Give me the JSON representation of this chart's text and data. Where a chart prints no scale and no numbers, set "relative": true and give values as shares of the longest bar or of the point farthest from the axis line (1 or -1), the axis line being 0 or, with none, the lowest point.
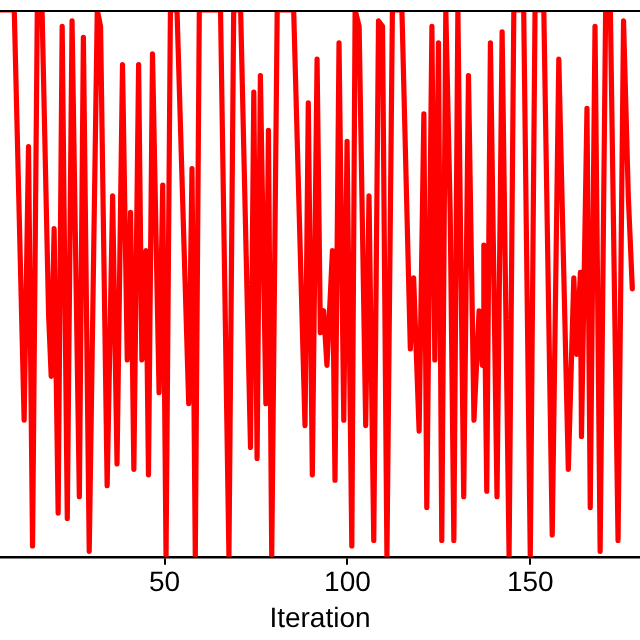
{
  "chart_data": {
    "type": "line",
    "xlabel": "Iteration",
    "relative": true,
    "tick_labels": "x",
    "grid": false,
    "legend": false,
    "marker": "none",
    "line_style": "solid",
    "xlim": [
      5,
      180
    ],
    "xticks": [
      50,
      100,
      150
    ],
    "series": [
      {
        "color": "#ff0000",
        "x": [
          5.2,
          8.9,
          11.6,
          12.8,
          13.9,
          15.2,
          16.5,
          18.3,
          19.0,
          19.8,
          20.9,
          22.0,
          23.4,
          24.7,
          26.7,
          27.8,
          29.4,
          31.6,
          32.5,
          34.3,
          35.8,
          37.0,
          38.5,
          39.8,
          40.7,
          41.6,
          42.9,
          43.8,
          44.9,
          45.6,
          46.7,
          48.5,
          49.5,
          50.4,
          51.6,
          53.4,
          56.6,
          57.5,
          58.4,
          59.5,
          65.3,
          67.6,
          68.9,
          70.8,
          73.5,
          74.4,
          75.3,
          76.2,
          77.7,
          78.4,
          79.3,
          80.8,
          85.3,
          88.4,
          89.3,
          90.4,
          91.7,
          92.6,
          93.5,
          94.4,
          95.9,
          96.6,
          97.7,
          99.0,
          99.9,
          101.2,
          102.1,
          103.2,
          105.0,
          105.9,
          107.2,
          108.5,
          109.6,
          110.8,
          112.3,
          114.9,
          117.2,
          118.1,
          119.6,
          120.9,
          121.7,
          123.1,
          123.9,
          124.9,
          125.8,
          126.9,
          128.1,
          129.1,
          130.2,
          131.8,
          133.1,
          134.6,
          136.0,
          136.9,
          137.3,
          138.1,
          139.1,
          140.9,
          142.3,
          144.2,
          145.5,
          148.2,
          150.0,
          151.3,
          153.7,
          156.0,
          157.8,
          160.4,
          161.9,
          162.7,
          163.7,
          164.0,
          165.5,
          166.4,
          167.7,
          169.1,
          170.6,
          171.9,
          174.0,
          175.5,
          176.8,
          177.9
        ],
        "values": [
          1,
          1,
          0.25,
          0.75,
          0.02,
          1,
          1,
          0.44,
          0.33,
          0.6,
          0.08,
          0.97,
          0.07,
          0.98,
          0.11,
          0.95,
          0.01,
          1,
          0.97,
          0.13,
          0.66,
          0.17,
          0.9,
          0.36,
          0.63,
          0.16,
          0.9,
          0.36,
          0.56,
          0.15,
          0.92,
          0.3,
          0.68,
          0,
          1,
          1,
          0.28,
          0.71,
          0,
          1,
          1,
          0,
          1,
          1,
          0.2,
          0.85,
          0.18,
          0.88,
          0.28,
          0.78,
          0,
          1,
          1,
          0.24,
          0.83,
          0.15,
          0.91,
          0.41,
          0.45,
          0.35,
          0.56,
          0.14,
          0.94,
          0.25,
          0.76,
          0.02,
          1,
          0.97,
          0.24,
          0.66,
          0.03,
          0.98,
          0.97,
          0,
          1,
          1,
          0.38,
          0.51,
          0.23,
          0.81,
          0.09,
          0.97,
          0.36,
          0.94,
          0.03,
          1,
          0.63,
          0.03,
          1,
          0.11,
          0.88,
          0.25,
          0.45,
          0.35,
          0.57,
          0.12,
          0.94,
          0.11,
          0.96,
          0,
          1,
          1,
          0,
          1,
          1,
          0.04,
          0.91,
          0.16,
          0.51,
          0.37,
          0.52,
          0.22,
          0.82,
          0.09,
          0.97,
          0.01,
          1,
          1,
          0.03,
          0.98,
          0.66,
          0.49
        ]
      }
    ]
  }
}
